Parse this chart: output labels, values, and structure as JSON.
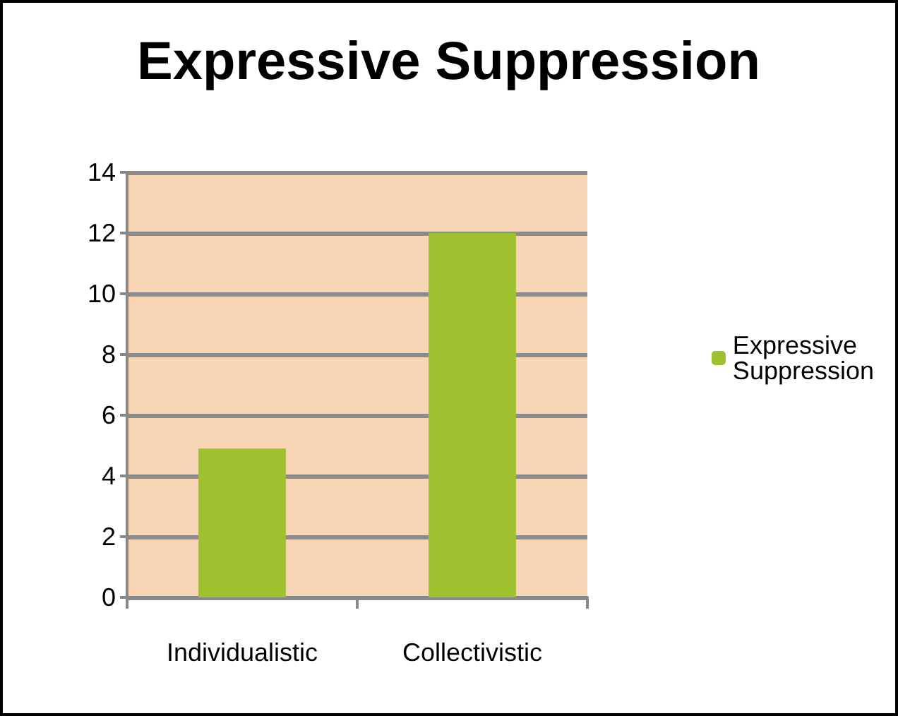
{
  "chart_data": {
    "type": "bar",
    "title": "Expressive Suppression",
    "categories": [
      "Individualistic",
      "Collectivistic"
    ],
    "series": [
      {
        "name": "Expressive Suppression",
        "color": "#9fc130",
        "values": [
          4.9,
          12
        ]
      }
    ],
    "ylim": [
      0,
      14
    ],
    "yticks": [
      0,
      2,
      4,
      6,
      8,
      10,
      12,
      14
    ],
    "grid": "y",
    "legend": "right"
  }
}
